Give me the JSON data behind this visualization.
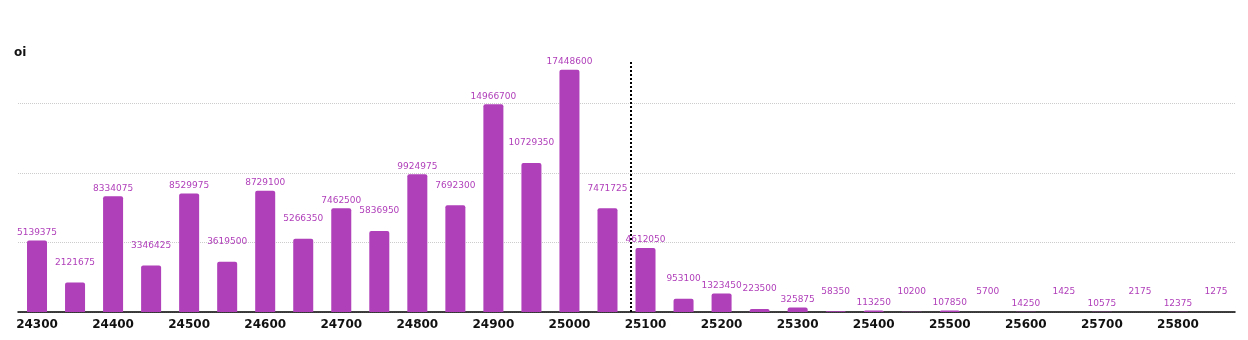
{
  "chart_data": {
    "type": "bar",
    "ylabel": "oi",
    "x": [
      24300,
      24350,
      24400,
      24450,
      24500,
      24550,
      24600,
      24650,
      24700,
      24750,
      24800,
      24850,
      24900,
      24950,
      25000,
      25050,
      25100,
      25150,
      25200,
      25250,
      25300,
      25350,
      25400,
      25450,
      25500,
      25550,
      25600,
      25650,
      25700,
      25750,
      25800,
      25850
    ],
    "values": [
      5139375,
      2121675,
      8334075,
      3346425,
      8529975,
      3619500,
      8729100,
      5266350,
      7462500,
      5836950,
      9924975,
      7692300,
      14966700,
      10729350,
      17448600,
      7471725,
      4612050,
      953100,
      1323450,
      223500,
      325875,
      58350,
      113250,
      10200,
      107850,
      5700,
      14250,
      1425,
      10575,
      2175,
      12375,
      1275
    ],
    "color": "#b03fba",
    "xlim": [
      24275,
      25875
    ],
    "xticks": [
      24300,
      24400,
      24500,
      24600,
      24700,
      24800,
      24900,
      25000,
      25100,
      25200,
      25300,
      25400,
      25500,
      25600,
      25700,
      25800
    ],
    "ylim": [
      0,
      18000000
    ],
    "yticks": [
      {
        "value": 0,
        "label": null
      },
      {
        "value": 5000000,
        "label": null
      },
      {
        "value": 10000000,
        "label": null
      },
      {
        "value": 15000000,
        "label": null
      }
    ],
    "tick_labels": "x",
    "grid": "y",
    "data_labels": true,
    "ref_lines": [
      {
        "axis": "x",
        "value": 25080,
        "line_style": "dotted",
        "color": "#000000"
      }
    ]
  }
}
